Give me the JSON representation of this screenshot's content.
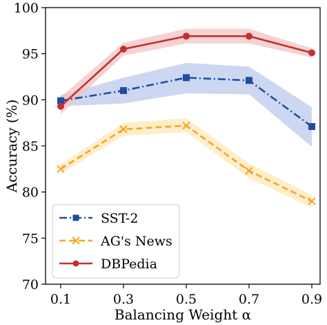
{
  "chart_data": {
    "type": "line",
    "title": "",
    "xlabel": "Balancing Weight α",
    "ylabel": "Accuracy (%)",
    "x": [
      0.1,
      0.3,
      0.5,
      0.7,
      0.9
    ],
    "x_tick_labels": [
      "0.1",
      "0.3",
      "0.5",
      "0.7",
      "0.9"
    ],
    "ylim": [
      70,
      100
    ],
    "y_ticks": [
      70,
      75,
      80,
      85,
      90,
      95,
      100
    ],
    "grid": false,
    "legend_position": "lower-left",
    "series": [
      {
        "name": "SST-2",
        "values": [
          89.9,
          91.0,
          92.4,
          92.1,
          87.1
        ],
        "band_low": [
          89.3,
          89.6,
          90.7,
          90.6,
          84.9
        ],
        "band_high": [
          90.5,
          92.4,
          94.0,
          93.6,
          89.2
        ],
        "color": "#1f4e9c",
        "band_color": "#bcc9ec",
        "line_style": "dashdot",
        "marker": "square"
      },
      {
        "name": "AG's News",
        "values": [
          82.5,
          86.8,
          87.2,
          82.3,
          79.0
        ],
        "band_low": [
          82.0,
          86.1,
          86.5,
          81.5,
          78.3
        ],
        "band_high": [
          83.0,
          87.5,
          88.0,
          83.1,
          79.7
        ],
        "color": "#f5a623",
        "band_color": "#fde8b8",
        "line_style": "dashed",
        "marker": "x"
      },
      {
        "name": "DBPedia",
        "values": [
          89.3,
          95.5,
          96.9,
          96.9,
          95.1
        ],
        "band_low": [
          88.4,
          94.8,
          96.1,
          96.1,
          94.6
        ],
        "band_high": [
          90.3,
          96.2,
          97.7,
          97.7,
          95.6
        ],
        "color": "#c62f2f",
        "band_color": "#f1c4c4",
        "line_style": "solid",
        "marker": "circle"
      }
    ]
  }
}
